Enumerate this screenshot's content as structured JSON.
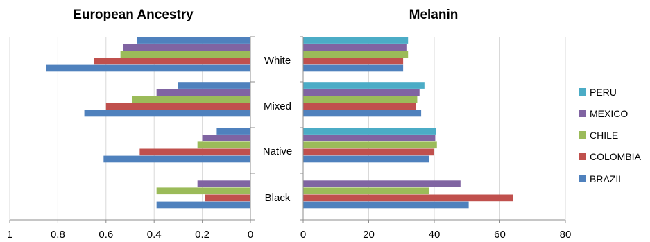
{
  "chart_data": [
    {
      "type": "bar",
      "orientation": "horizontal",
      "title": "European Ancestry",
      "categories": [
        "White",
        "Mixed",
        "Native",
        "Black"
      ],
      "xlim": [
        1,
        0
      ],
      "x_reversed": true,
      "xticks": [
        "1",
        "0.8",
        "0.6",
        "0.4",
        "0.2",
        "0"
      ],
      "grid": true,
      "series": [
        {
          "name": "PERU",
          "color": "#4BACC6",
          "values": [
            null,
            null,
            null,
            null
          ]
        },
        {
          "name": "MEXICO",
          "color": "#8064A2",
          "values": [
            0.53,
            0.39,
            0.2,
            0.22
          ]
        },
        {
          "name": "CHILE",
          "color": "#9BBB59",
          "values": [
            0.54,
            0.49,
            0.22,
            0.39
          ]
        },
        {
          "name": "COLOMBIA",
          "color": "#C0504D",
          "values": [
            0.65,
            0.6,
            0.46,
            0.19
          ]
        },
        {
          "name": "BRAZIL",
          "color": "#4F81BD",
          "values": [
            0.85,
            0.69,
            0.61,
            0.39
          ]
        },
        {
          "name": "BRAZIL",
          "color": "#4F81BD",
          "values": [
            0.47,
            0.3,
            0.14,
            null
          ]
        }
      ]
    },
    {
      "type": "bar",
      "orientation": "horizontal",
      "title": "Melanin",
      "categories": [
        "White",
        "Mixed",
        "Native",
        "Black"
      ],
      "xlim": [
        0,
        80
      ],
      "xticks": [
        "0",
        "20",
        "40",
        "60",
        "80"
      ],
      "grid": true,
      "legend_position": "right",
      "series": [
        {
          "name": "PERU",
          "color": "#4BACC6",
          "values": [
            32,
            37,
            40.5,
            null
          ]
        },
        {
          "name": "MEXICO",
          "color": "#8064A2",
          "values": [
            31.5,
            35.5,
            40.3,
            48
          ]
        },
        {
          "name": "CHILE",
          "color": "#9BBB59",
          "values": [
            32,
            34.8,
            40.8,
            38.5
          ]
        },
        {
          "name": "COLOMBIA",
          "color": "#C0504D",
          "values": [
            30.5,
            34.5,
            40,
            64
          ]
        },
        {
          "name": "BRAZIL",
          "color": "#4F81BD",
          "values": [
            30.5,
            36,
            38.5,
            50.5
          ]
        }
      ]
    }
  ],
  "legend": [
    {
      "name": "PERU",
      "color": "#4BACC6"
    },
    {
      "name": "MEXICO",
      "color": "#8064A2"
    },
    {
      "name": "CHILE",
      "color": "#9BBB59"
    },
    {
      "name": "COLOMBIA",
      "color": "#C0504D"
    },
    {
      "name": "BRAZIL",
      "color": "#4F81BD"
    }
  ]
}
